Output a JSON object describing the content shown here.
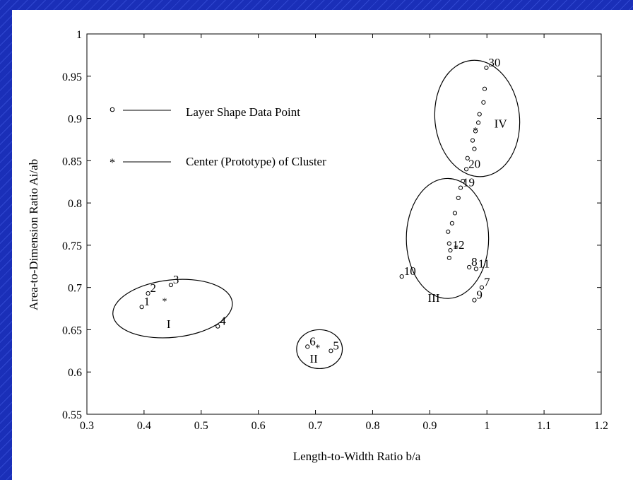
{
  "chart_data": {
    "type": "scatter",
    "xlabel": "Length-to-Width Ratio b/a",
    "ylabel": "Area-to-Dimension Ratio Ai/ab",
    "xlim": [
      0.3,
      1.2
    ],
    "ylim": [
      0.55,
      1.0
    ],
    "xticks": [
      "0.3",
      "0.4",
      "0.5",
      "0.6",
      "0.7",
      "0.8",
      "0.9",
      "1",
      "1.1",
      "1.2"
    ],
    "yticks": [
      "0.55",
      "0.6",
      "0.65",
      "0.7",
      "0.75",
      "0.8",
      "0.85",
      "0.9",
      "0.95",
      "1"
    ],
    "grid": false,
    "legend": [
      {
        "marker": "o",
        "label": "Layer Shape Data Point"
      },
      {
        "marker": "*",
        "label": "Center (Prototype) of Cluster"
      }
    ],
    "points": [
      {
        "label": "1",
        "x": 0.396,
        "y": 0.677
      },
      {
        "label": "2",
        "x": 0.407,
        "y": 0.693
      },
      {
        "label": "3",
        "x": 0.447,
        "y": 0.703
      },
      {
        "label": "4",
        "x": 0.529,
        "y": 0.654
      },
      {
        "label": "5",
        "x": 0.727,
        "y": 0.625
      },
      {
        "label": "6",
        "x": 0.686,
        "y": 0.63
      },
      {
        "label": "7",
        "x": 0.991,
        "y": 0.7
      },
      {
        "label": "8",
        "x": 0.969,
        "y": 0.724
      },
      {
        "label": "9",
        "x": 0.978,
        "y": 0.685
      },
      {
        "label": "10",
        "x": 0.851,
        "y": 0.713
      },
      {
        "label": "11",
        "x": 0.981,
        "y": 0.722
      },
      {
        "label": "12",
        "x": 0.936,
        "y": 0.744
      },
      {
        "label": "",
        "x": 0.934,
        "y": 0.735
      },
      {
        "label": "",
        "x": 0.934,
        "y": 0.752
      },
      {
        "label": "",
        "x": 0.932,
        "y": 0.766
      },
      {
        "label": "",
        "x": 0.939,
        "y": 0.776
      },
      {
        "label": "",
        "x": 0.944,
        "y": 0.788
      },
      {
        "label": "",
        "x": 0.95,
        "y": 0.806
      },
      {
        "label": "19",
        "x": 0.954,
        "y": 0.818
      },
      {
        "label": "",
        "x": 0.958,
        "y": 0.826
      },
      {
        "label": "20",
        "x": 0.964,
        "y": 0.84
      },
      {
        "label": "",
        "x": 0.966,
        "y": 0.853
      },
      {
        "label": "",
        "x": 0.978,
        "y": 0.864
      },
      {
        "label": "",
        "x": 0.975,
        "y": 0.874
      },
      {
        "label": "",
        "x": 0.98,
        "y": 0.885
      },
      {
        "label": "",
        "x": 0.985,
        "y": 0.895
      },
      {
        "label": "",
        "x": 0.987,
        "y": 0.905
      },
      {
        "label": "",
        "x": 0.994,
        "y": 0.919
      },
      {
        "label": "",
        "x": 0.996,
        "y": 0.935
      },
      {
        "label": "30",
        "x": 0.999,
        "y": 0.96
      }
    ],
    "centers": [
      {
        "x": 0.436,
        "y": 0.685
      },
      {
        "x": 0.704,
        "y": 0.63
      },
      {
        "x": 0.946,
        "y": 0.748
      },
      {
        "x": 0.98,
        "y": 0.887
      }
    ],
    "clusters": [
      {
        "label": "I",
        "label_x": 0.443,
        "label_y": 0.657,
        "ellipse": {
          "cx": 0.45,
          "cy": 0.675,
          "rx": 0.105,
          "ry": 0.034,
          "rotate": -6
        }
      },
      {
        "label": "II",
        "label_x": 0.697,
        "label_y": 0.616,
        "ellipse": {
          "cx": 0.707,
          "cy": 0.627,
          "rx": 0.04,
          "ry": 0.023,
          "rotate": 0
        }
      },
      {
        "label": "III",
        "label_x": 0.907,
        "label_y": 0.688,
        "ellipse": {
          "cx": 0.931,
          "cy": 0.758,
          "rx": 0.072,
          "ry": 0.071,
          "rotate": 0
        }
      },
      {
        "label": "IV",
        "label_x": 1.024,
        "label_y": 0.894,
        "ellipse": {
          "cx": 0.983,
          "cy": 0.9,
          "rx": 0.074,
          "ry": 0.069,
          "rotate": -6
        }
      }
    ]
  }
}
